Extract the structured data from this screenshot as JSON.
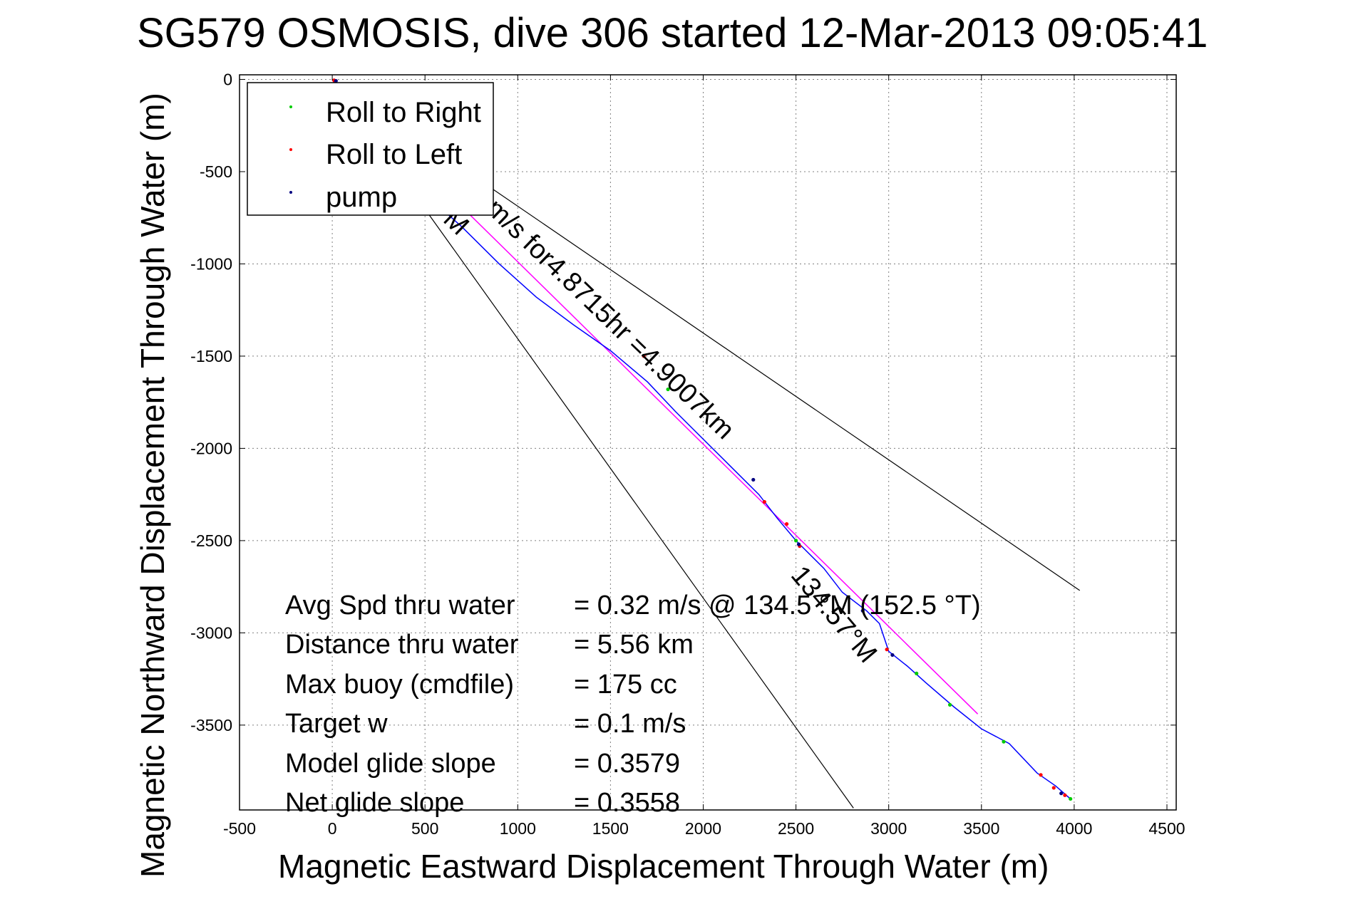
{
  "chart_data": {
    "type": "line",
    "title": "SG579 OSMOSIS, dive 306 started 12-Mar-2013 09:05:41",
    "xlabel": "Magnetic Eastward Displacement Through Water (m)",
    "ylabel": "Magnetic Northward Displacement Through Water (m)",
    "xlim": [
      -500,
      4550
    ],
    "ylim": [
      -3960,
      25
    ],
    "xticks": [
      -500,
      0,
      500,
      1000,
      1500,
      2000,
      2500,
      3000,
      3500,
      4000,
      4500
    ],
    "yticks": [
      0,
      -500,
      -1000,
      -1500,
      -2000,
      -2500,
      -3000,
      -3500
    ],
    "grid": true,
    "legend_position": "top-left",
    "legend": [
      {
        "label": "Roll to Right",
        "color": "#00cc00"
      },
      {
        "label": "Roll to Left",
        "color": "#ff0000"
      },
      {
        "label": "pump",
        "color": "#000080"
      }
    ],
    "track": {
      "color": "#0000ff",
      "points": [
        [
          0,
          0
        ],
        [
          100,
          -180
        ],
        [
          300,
          -420
        ],
        [
          500,
          -620
        ],
        [
          700,
          -800
        ],
        [
          900,
          -1000
        ],
        [
          1100,
          -1180
        ],
        [
          1300,
          -1330
        ],
        [
          1500,
          -1470
        ],
        [
          1700,
          -1640
        ],
        [
          1850,
          -1800
        ],
        [
          2000,
          -1950
        ],
        [
          2150,
          -2100
        ],
        [
          2300,
          -2250
        ],
        [
          2400,
          -2380
        ],
        [
          2500,
          -2500
        ],
        [
          2650,
          -2650
        ],
        [
          2750,
          -2780
        ],
        [
          2880,
          -2880
        ],
        [
          2950,
          -2950
        ],
        [
          3000,
          -3100
        ],
        [
          3100,
          -3180
        ],
        [
          3200,
          -3270
        ],
        [
          3350,
          -3400
        ],
        [
          3500,
          -3520
        ],
        [
          3650,
          -3600
        ],
        [
          3800,
          -3760
        ],
        [
          3900,
          -3830
        ],
        [
          3980,
          -3900
        ]
      ]
    },
    "course_line": {
      "color": "#ff00ff",
      "from": [
        0,
        0
      ],
      "to": [
        3480,
        -3440
      ]
    },
    "cone_lines": [
      {
        "color": "#000000",
        "from": [
          0,
          0
        ],
        "to": [
          4030,
          -2770
        ]
      },
      {
        "color": "#000000",
        "from": [
          0,
          0
        ],
        "to": [
          2810,
          -3950
        ]
      }
    ],
    "markers": [
      {
        "type": "Roll to Right",
        "points": [
          [
            1810,
            -1680
          ],
          [
            2500,
            -2500
          ],
          [
            3150,
            -3220
          ],
          [
            3330,
            -3390
          ],
          [
            3620,
            -3590
          ],
          [
            3980,
            -3900
          ]
        ]
      },
      {
        "type": "Roll to Left",
        "points": [
          [
            10,
            -5
          ],
          [
            1680,
            -1500
          ],
          [
            2330,
            -2290
          ],
          [
            2450,
            -2410
          ],
          [
            2520,
            -2530
          ],
          [
            2990,
            -3090
          ],
          [
            3820,
            -3770
          ],
          [
            3890,
            -3840
          ],
          [
            3950,
            -3880
          ]
        ]
      },
      {
        "type": "pump",
        "points": [
          [
            20,
            -8
          ],
          [
            2270,
            -2170
          ],
          [
            2515,
            -2520
          ],
          [
            2860,
            -2880
          ],
          [
            3020,
            -3120
          ],
          [
            3930,
            -3870
          ]
        ]
      }
    ],
    "annotations": {
      "course_text": "m/s for4.8715hr =4.9007km",
      "heading_text": "M",
      "end_heading_text": "134.57°M"
    },
    "stats": [
      {
        "label": "Avg Spd thru water",
        "value": "=  0.32 m/s @ 134.5 °M (152.5 °T)"
      },
      {
        "label": "Distance thru water",
        "value": "=  5.56 km"
      },
      {
        "label": "Max buoy (cmdfile)",
        "value": "= 175 cc"
      },
      {
        "label": "Target w",
        "value": "= 0.1 m/s"
      },
      {
        "label": "Model glide slope",
        "value": "= 0.3579"
      },
      {
        "label": "Net glide slope",
        "value": "= 0.3558"
      }
    ]
  }
}
